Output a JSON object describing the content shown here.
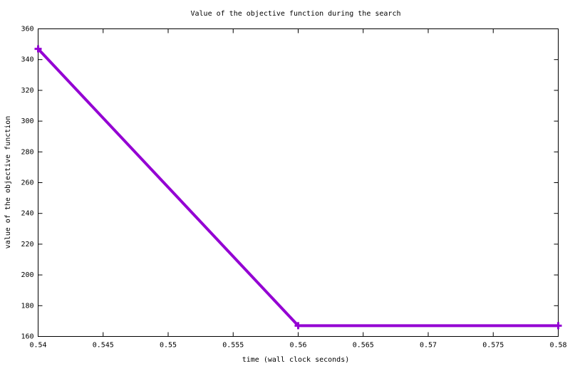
{
  "chart_data": {
    "type": "line",
    "title": "Value of the objective function during the search",
    "x_label": "time (wall clock seconds)",
    "y_label": "value of the objective function",
    "x": [
      0.54,
      0.56,
      0.58
    ],
    "series": [
      {
        "color": "#9400d3",
        "values": [
          347,
          167,
          167
        ]
      }
    ],
    "xlim": [
      0.54,
      0.58
    ],
    "xticks": [
      0.54,
      0.545,
      0.55,
      0.555,
      0.56,
      0.565,
      0.57,
      0.575,
      0.58
    ],
    "ylim": [
      160,
      360
    ],
    "yticks": [
      160,
      180,
      200,
      220,
      240,
      260,
      280,
      300,
      320,
      340,
      360
    ],
    "grid": false
  }
}
